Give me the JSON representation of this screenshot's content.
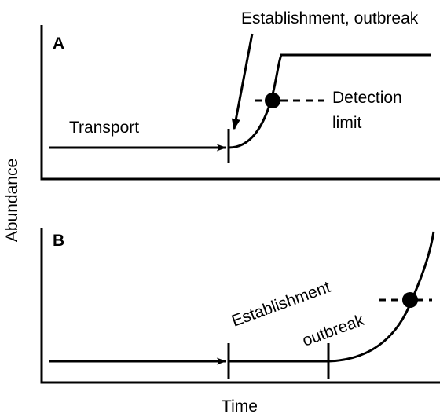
{
  "axes": {
    "y_label": "Abundance",
    "x_label": "Time"
  },
  "panel_a": {
    "label": "A",
    "callout": "Establishment, outbreak",
    "transport": "Transport",
    "detection": [
      "Detection",
      "limit"
    ]
  },
  "panel_b": {
    "label": "B",
    "establishment": "Establishment",
    "outbreak": "outbreak"
  }
}
